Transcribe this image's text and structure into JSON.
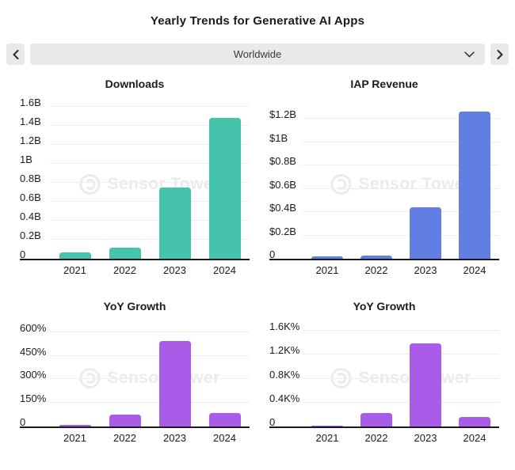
{
  "header": {
    "title": "Yearly Trends for Generative AI Apps"
  },
  "selector": {
    "value": "Worldwide",
    "prev_icon": "chevron-left",
    "next_icon": "chevron-right",
    "open_icon": "chevron-down"
  },
  "watermark": {
    "text": "Sensor Tower"
  },
  "colors": {
    "downloads_bar": "#45c3ab",
    "revenue_bar": "#617ee3",
    "growth_bar": "#a95ce8",
    "axis": "#1b1b1f",
    "gridline": "#ededed",
    "control_bg": "#e9e9e7",
    "text": "#1b1b1f"
  },
  "chart_data": [
    {
      "type": "bar",
      "title": "Downloads",
      "categories": [
        "2021",
        "2022",
        "2023",
        "2024"
      ],
      "values": [
        0.07,
        0.12,
        0.75,
        1.48
      ],
      "unit": "billions of downloads",
      "yticks": [
        {
          "value": 0,
          "label": "0"
        },
        {
          "value": 0.2,
          "label": "0.2B"
        },
        {
          "value": 0.4,
          "label": "0.4B"
        },
        {
          "value": 0.6,
          "label": "0.6B"
        },
        {
          "value": 0.8,
          "label": "0.8B"
        },
        {
          "value": 1.0,
          "label": "1B"
        },
        {
          "value": 1.2,
          "label": "1.2B"
        },
        {
          "value": 1.4,
          "label": "1.4B"
        },
        {
          "value": 1.6,
          "label": "1.6B"
        }
      ],
      "ylim": [
        0,
        1.63
      ],
      "bar_color": "#45c3ab",
      "grid": true,
      "legend": "none"
    },
    {
      "type": "bar",
      "title": "IAP Revenue",
      "categories": [
        "2021",
        "2022",
        "2023",
        "2024"
      ],
      "values": [
        0.02,
        0.03,
        0.44,
        1.26
      ],
      "unit": "USD billions",
      "yticks": [
        {
          "value": 0,
          "label": "0"
        },
        {
          "value": 0.2,
          "label": "$0.2B"
        },
        {
          "value": 0.4,
          "label": "$0.4B"
        },
        {
          "value": 0.6,
          "label": "$0.6B"
        },
        {
          "value": 0.8,
          "label": "$0.8B"
        },
        {
          "value": 1.0,
          "label": "$1B"
        },
        {
          "value": 1.2,
          "label": "$1.2B"
        }
      ],
      "ylim": [
        0,
        1.33
      ],
      "bar_color": "#617ee3",
      "grid": true,
      "legend": "none"
    },
    {
      "type": "bar",
      "title": "YoY Growth",
      "categories": [
        "2021",
        "2022",
        "2023",
        "2024"
      ],
      "values": [
        10,
        75,
        545,
        85
      ],
      "unit": "percent (downloads growth)",
      "yticks": [
        {
          "value": 0,
          "label": "0"
        },
        {
          "value": 150,
          "label": "150%"
        },
        {
          "value": 300,
          "label": "300%"
        },
        {
          "value": 450,
          "label": "450%"
        },
        {
          "value": 600,
          "label": "600%"
        }
      ],
      "ylim": [
        0,
        640
      ],
      "bar_color": "#a95ce8",
      "grid": true,
      "legend": "none"
    },
    {
      "type": "bar",
      "title": "YoY Growth",
      "categories": [
        "2021",
        "2022",
        "2023",
        "2024"
      ],
      "values": [
        15,
        220,
        1390,
        160
      ],
      "unit": "percent (IAP revenue growth)",
      "yticks": [
        {
          "value": 0,
          "label": "0"
        },
        {
          "value": 400,
          "label": "0.4K%"
        },
        {
          "value": 800,
          "label": "0.8K%"
        },
        {
          "value": 1200,
          "label": "1.2K%"
        },
        {
          "value": 1600,
          "label": "1.6K%"
        }
      ],
      "ylim": [
        0,
        1680
      ],
      "bar_color": "#a95ce8",
      "grid": true,
      "legend": "none"
    }
  ]
}
